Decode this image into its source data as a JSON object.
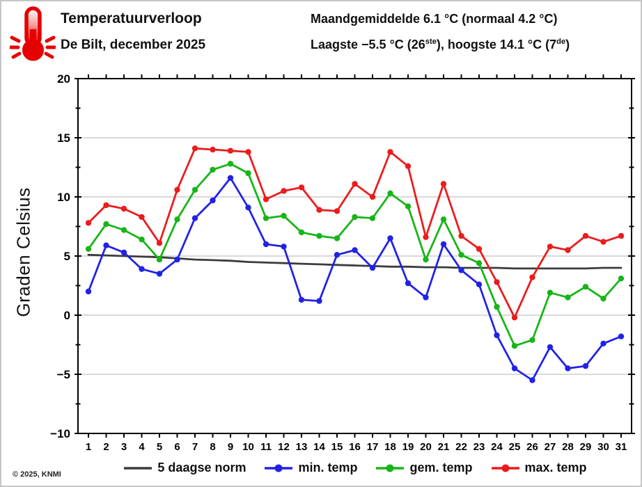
{
  "header": {
    "title": "Temperatuurverloop",
    "subtitle": "De Bilt, december 2025",
    "stats_line1": "Maandgemiddelde 6.1 °C (normaal 4.2 °C)",
    "stats_line2": {
      "p1": "Laagste −5.5 °C (26",
      "sup1": "ste",
      "p2": "), hoogste 14.1 °C (7",
      "sup2": "de",
      "p3": ")"
    },
    "icon": "thermometer-hot-icon",
    "icon_color": "#e60000"
  },
  "chart_data": {
    "type": "line",
    "title": "Temperatuurverloop De Bilt, december 2025",
    "categories": [
      1,
      2,
      3,
      4,
      5,
      6,
      7,
      8,
      9,
      10,
      11,
      12,
      13,
      14,
      15,
      16,
      17,
      18,
      19,
      20,
      21,
      22,
      23,
      24,
      25,
      26,
      27,
      28,
      29,
      30,
      31
    ],
    "series": [
      {
        "name": "5 daagse norm",
        "color": "#3c3c3c",
        "marker": false,
        "values": [
          5.1,
          5.05,
          5.0,
          4.95,
          4.9,
          4.8,
          4.7,
          4.65,
          4.6,
          4.5,
          4.45,
          4.4,
          4.35,
          4.3,
          4.25,
          4.2,
          4.15,
          4.1,
          4.1,
          4.05,
          4.05,
          4.0,
          4.0,
          4.0,
          3.95,
          3.95,
          3.95,
          3.95,
          3.95,
          4.0,
          4.0
        ]
      },
      {
        "name": "min. temp",
        "color": "#2222e6",
        "marker": true,
        "values": [
          2.0,
          5.9,
          5.3,
          3.9,
          3.5,
          4.7,
          8.2,
          9.7,
          11.6,
          9.1,
          6.0,
          5.8,
          1.3,
          1.2,
          5.1,
          5.5,
          4.0,
          6.5,
          2.7,
          1.5,
          6.0,
          3.8,
          2.6,
          -1.7,
          -4.5,
          -5.5,
          -2.7,
          -4.5,
          -4.3,
          -2.4,
          -1.8
        ]
      },
      {
        "name": "gem. temp",
        "color": "#17b517",
        "marker": true,
        "values": [
          5.6,
          7.7,
          7.2,
          6.4,
          4.7,
          8.1,
          10.6,
          12.3,
          12.8,
          12.0,
          8.2,
          8.4,
          7.0,
          6.7,
          6.5,
          8.3,
          8.2,
          10.3,
          9.2,
          4.7,
          8.1,
          5.1,
          4.4,
          0.7,
          -2.6,
          -2.1,
          1.9,
          1.5,
          2.4,
          1.4,
          3.1
        ]
      },
      {
        "name": "max. temp",
        "color": "#ea1c1c",
        "marker": true,
        "values": [
          7.8,
          9.3,
          9.0,
          8.3,
          6.1,
          10.6,
          14.1,
          14.0,
          13.9,
          13.8,
          9.8,
          10.5,
          10.8,
          8.9,
          8.8,
          11.1,
          10.0,
          13.8,
          12.6,
          6.6,
          11.1,
          6.7,
          5.6,
          2.8,
          -0.2,
          3.2,
          5.8,
          5.5,
          6.7,
          6.2,
          6.7
        ]
      }
    ],
    "ylabel": "Graden Celsius",
    "ylim": [
      -10,
      20
    ],
    "yticks": [
      -10,
      -5,
      0,
      5,
      10,
      15,
      20
    ],
    "ytick_minor_step": 2.5,
    "grid": true,
    "legend_position": "bottom"
  },
  "footer": {
    "copyright": "© 2025, KNMI"
  }
}
